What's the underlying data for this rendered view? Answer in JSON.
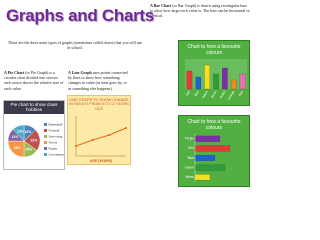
{
  "header": {
    "title": "Graphs and Charts",
    "intro": "These are the three main types of graphs (sometimes called charts) that you will use in school."
  },
  "descriptions": {
    "bar": {
      "term": "A Bar Chart",
      "text": " (or Bar Graph) is drawn using rectangular bars to show how large each value is. The bars can be horizontal or vertical."
    },
    "pie": {
      "term": "A Pie Chart",
      "text": " (or Pie Graph) is a circular chart divided into sectors, each sector shows the relative size of each value."
    },
    "line": {
      "term": "A Line Graph",
      "text": " uses points connected by lines to show how something changes in value (as time goes by, or as something else happens)."
    }
  },
  "charts": {
    "pie": {
      "type": "pie",
      "title": "Pie chart to show class hobbies",
      "categories": [
        "Basketball",
        "Football",
        "Swimming",
        "Tennis",
        "Rugby",
        "Gymnastics"
      ],
      "values": [
        13,
        22,
        15,
        25,
        13,
        12
      ],
      "value_labels": [
        "13%",
        "22%",
        "15%",
        "25%",
        "13%",
        "12%"
      ],
      "colors": [
        "#4f81bd",
        "#c0504d",
        "#9bbb59",
        "#f79646",
        "#8064a2",
        "#4bacc6"
      ]
    },
    "line": {
      "type": "line",
      "title": "LINE GRAPH TO SHOW CHANGE IN HEIGHT FROM 9 TO 12 YEARS OLD",
      "x_label": "AGE (YEARS)",
      "x": [
        9,
        10,
        11,
        12
      ],
      "values": [
        130,
        136,
        141,
        148
      ],
      "xlim": [
        9,
        12
      ],
      "ylim": [
        120,
        160
      ],
      "color": "#e46c0a"
    },
    "bar": {
      "type": "bar",
      "title": "Chart to how a favourite colours",
      "categories": [
        "Red",
        "Blue",
        "Yellow",
        "Green",
        "Purple",
        "Orange",
        "Pink"
      ],
      "values": [
        6,
        4,
        8,
        5,
        7,
        3,
        5
      ],
      "ylim": [
        0,
        10
      ],
      "colors": [
        "#e53935",
        "#1e63d6",
        "#f4e01c",
        "#2e9e3b",
        "#7b2fa8",
        "#f08a1c",
        "#f06ab0"
      ]
    },
    "hbar": {
      "type": "hbar",
      "title": "Chart to how a favourite colours",
      "categories": [
        "Purple",
        "Red",
        "Blue",
        "Green",
        "Yellow"
      ],
      "values": [
        5,
        7,
        4,
        6,
        3
      ],
      "xlim": [
        0,
        10
      ],
      "colors": [
        "#7b2fa8",
        "#e53935",
        "#1e63d6",
        "#2e9e3b",
        "#f4e01c"
      ]
    }
  }
}
